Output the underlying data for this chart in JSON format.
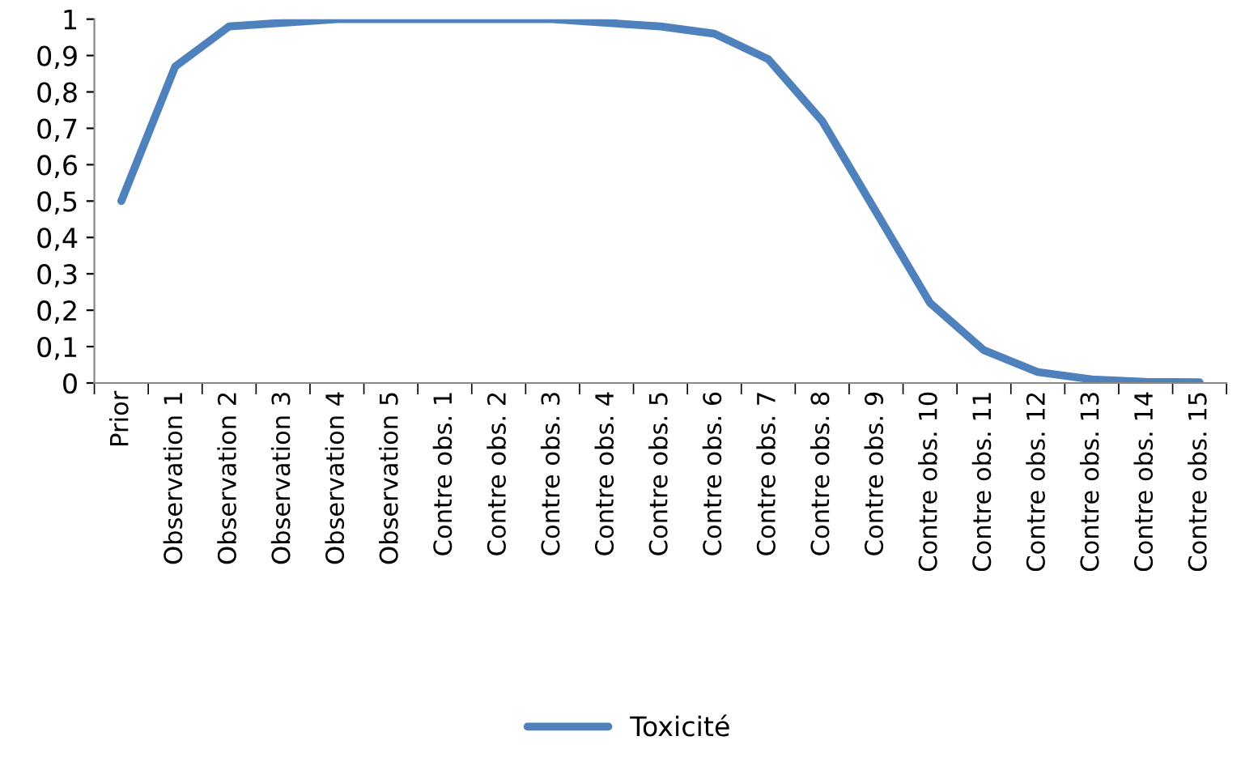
{
  "chart_data": {
    "type": "line",
    "categories": [
      "Prior",
      "Observation 1",
      "Observation 2",
      "Observation 3",
      "Observation 4",
      "Observation 5",
      "Contre obs. 1",
      "Contre obs. 2",
      "Contre obs. 3",
      "Contre obs. 4",
      "Contre obs. 5",
      "Contre obs. 6",
      "Contre obs. 7",
      "Contre obs. 8",
      "Contre obs. 9",
      "Contre obs. 10",
      "Contre obs. 11",
      "Contre obs. 12",
      "Contre obs. 13",
      "Contre obs. 14",
      "Contre obs. 15"
    ],
    "series": [
      {
        "name": "Toxicité",
        "color": "#4f81bd",
        "values": [
          0.5,
          0.87,
          0.98,
          0.99,
          1,
          1,
          1,
          1,
          1,
          0.99,
          0.98,
          0.96,
          0.89,
          0.72,
          0.47,
          0.22,
          0.09,
          0.03,
          0.01,
          0.003,
          0.002
        ]
      }
    ],
    "ylim": [
      0,
      1
    ],
    "yticks": [
      0,
      {
        "value": 0.1,
        "label": "0,1"
      },
      {
        "value": 0.2,
        "label": "0,2"
      },
      {
        "value": 0.3,
        "label": "0,3"
      },
      {
        "value": 0.4,
        "label": "0,4"
      },
      {
        "value": 0.5,
        "label": "0,5"
      },
      {
        "value": 0.6,
        "label": "0,6"
      },
      {
        "value": 0.7,
        "label": "0,7"
      },
      {
        "value": 0.8,
        "label": "0,8"
      },
      {
        "value": 0.9,
        "label": "0,9"
      },
      1
    ],
    "grid": false,
    "legend": "bottom",
    "marker": "none",
    "line_style": "solid"
  }
}
